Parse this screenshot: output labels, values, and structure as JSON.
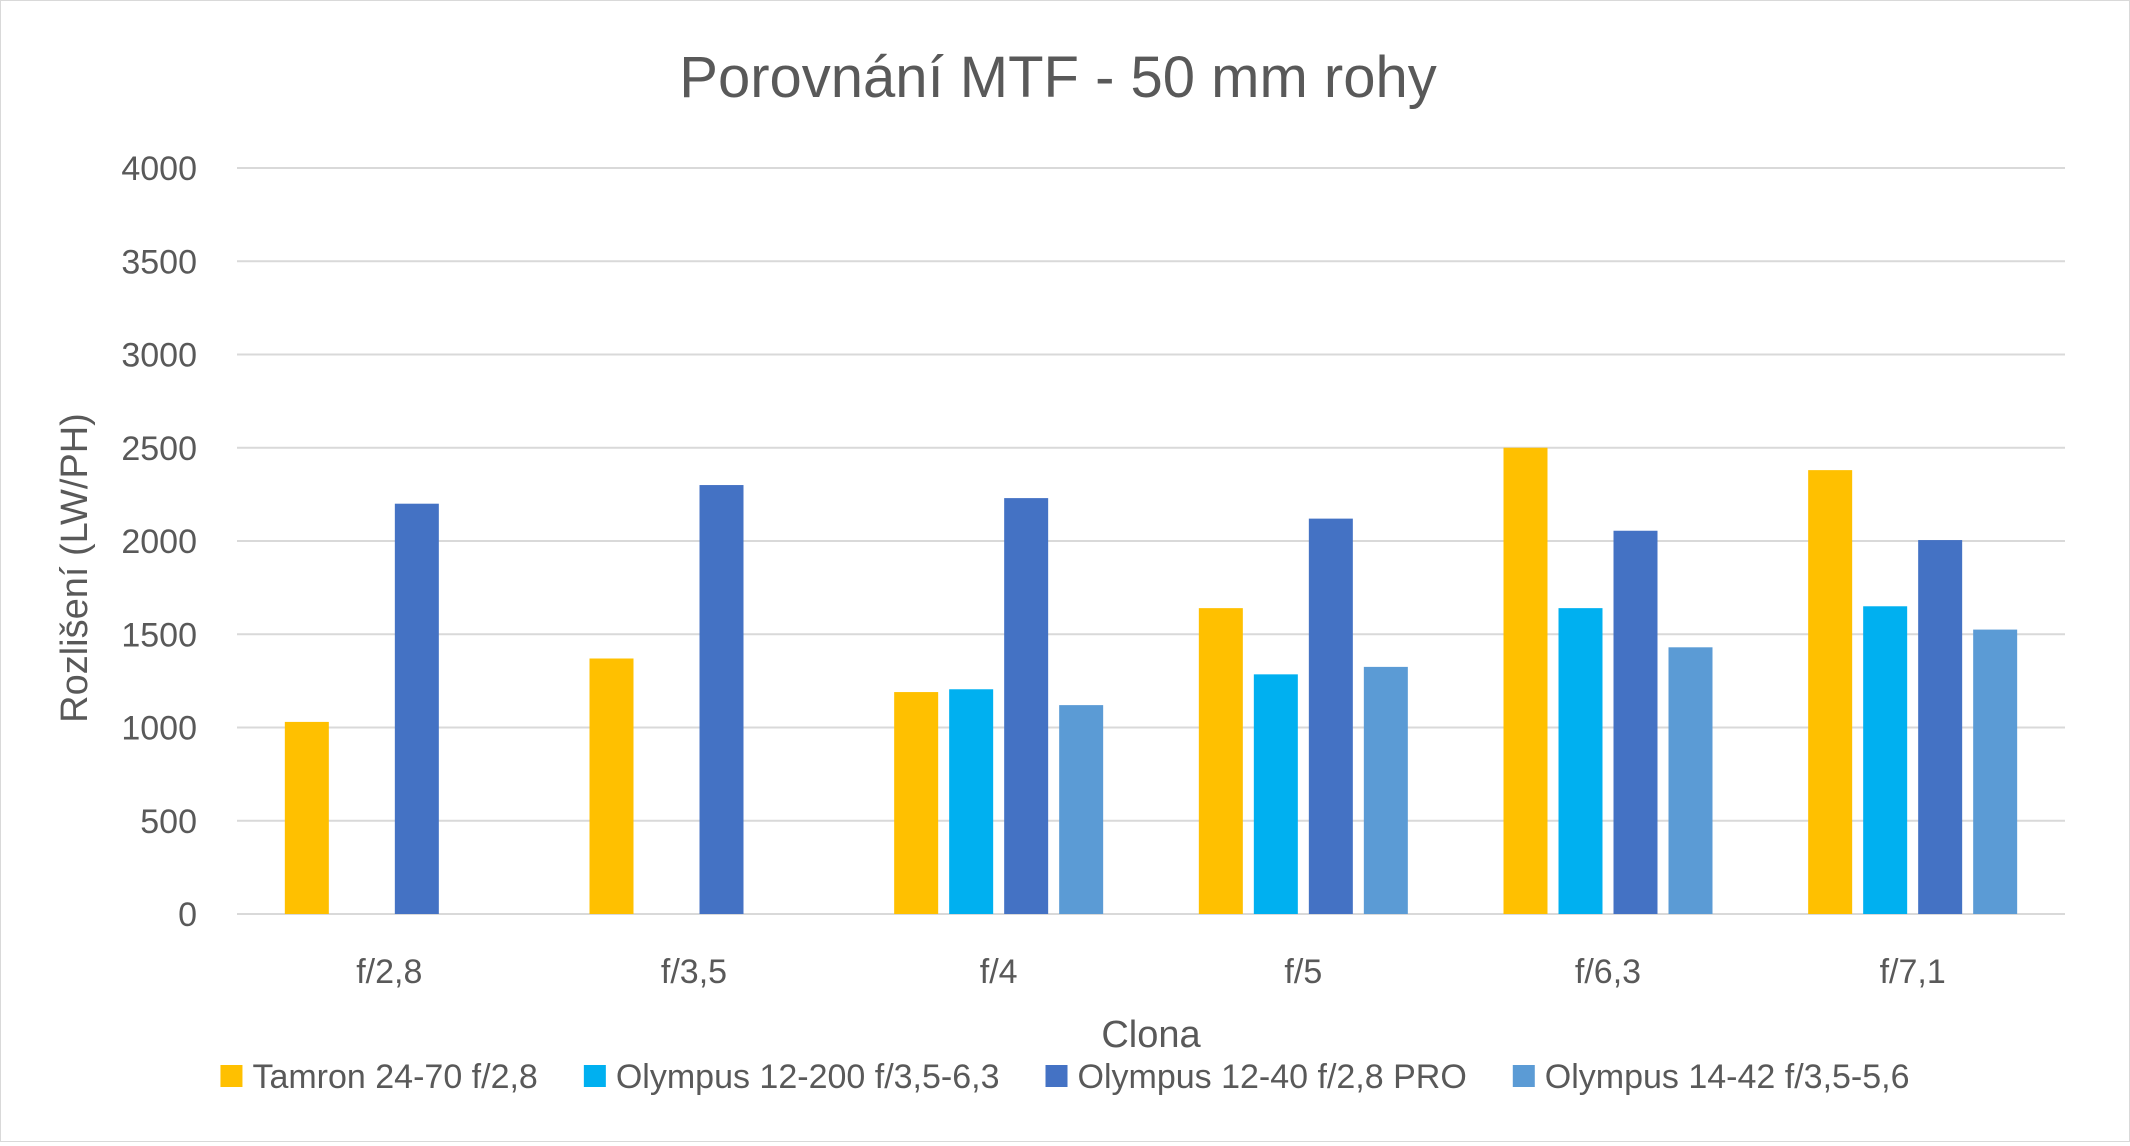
{
  "chart_data": {
    "type": "bar",
    "title": "Porovnání MTF - 50 mm rohy",
    "xlabel": "Clona",
    "ylabel": "Rozlišení (LW/PH)",
    "ylim": [
      0,
      4000
    ],
    "yticks": [
      0,
      500,
      1000,
      1500,
      2000,
      2500,
      3000,
      3500,
      4000
    ],
    "grid": true,
    "legend_position": "bottom",
    "categories": [
      "f/2,8",
      "f/3,5",
      "f/4",
      "f/5",
      "f/6,3",
      "f/7,1"
    ],
    "series": [
      {
        "name": "Tamron 24-70 f/2,8",
        "color": "#FFC000",
        "values": [
          1030,
          1370,
          1190,
          1640,
          2500,
          2380
        ]
      },
      {
        "name": "Olympus 12-200 f/3,5-6,3",
        "color": "#00B0F0",
        "values": [
          null,
          null,
          1205,
          1285,
          1640,
          1650
        ]
      },
      {
        "name": "Olympus 12-40 f/2,8 PRO",
        "color": "#4472C4",
        "values": [
          2200,
          2300,
          2230,
          2120,
          2055,
          2005
        ]
      },
      {
        "name": "Olympus 14-42 f/3,5-5,6",
        "color": "#5B9BD5",
        "values": [
          null,
          null,
          1120,
          1325,
          1430,
          1525
        ]
      }
    ]
  }
}
